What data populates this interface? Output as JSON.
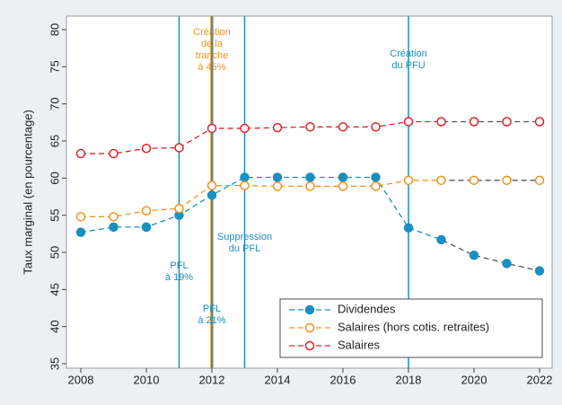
{
  "chart_data": {
    "type": "line",
    "ylabel": "Taux marginal (en pourcentage)",
    "x": [
      2008,
      2009,
      2010,
      2011,
      2012,
      2013,
      2014,
      2015,
      2016,
      2017,
      2018,
      2019,
      2020,
      2021,
      2022
    ],
    "xlim": [
      2008,
      2022
    ],
    "xticks": [
      2008,
      2010,
      2012,
      2014,
      2016,
      2018,
      2020,
      2022
    ],
    "ylim": [
      35,
      80
    ],
    "yticks": [
      35,
      40,
      45,
      50,
      55,
      60,
      65,
      70,
      75,
      80
    ],
    "grid": false,
    "legend": "lower right",
    "projected_from": 2019,
    "projected_color": "#555555",
    "series": [
      {
        "name": "Dividendes",
        "color": "#1a8fc0",
        "marker": "filled",
        "values": [
          52.7,
          53.4,
          53.4,
          55.0,
          57.7,
          60.1,
          60.1,
          60.1,
          60.1,
          60.1,
          53.3,
          51.7,
          49.6,
          48.5,
          47.5
        ]
      },
      {
        "name": "Salaires (hors cotis. retraites)",
        "color": "#f0921e",
        "marker": "hollow",
        "values": [
          54.8,
          54.8,
          55.6,
          55.9,
          59.0,
          59.0,
          58.9,
          58.9,
          58.9,
          58.9,
          59.7,
          59.7,
          59.7,
          59.7,
          59.7
        ]
      },
      {
        "name": "Salaires",
        "color": "#e0232a",
        "marker": "hollow",
        "values": [
          63.3,
          63.3,
          64.0,
          64.1,
          66.7,
          66.7,
          66.8,
          66.9,
          66.9,
          66.9,
          67.6,
          67.6,
          67.6,
          67.6,
          67.6
        ]
      }
    ],
    "vlines": [
      {
        "x": 2011,
        "color": "#1a8fc0",
        "width": 1.5,
        "label": [
          "PFL",
          "à 19%"
        ]
      },
      {
        "x": 2012,
        "color": "#f0921e",
        "width": 3.5,
        "label": [
          "Création",
          "de la",
          "tranche",
          "à 45%"
        ]
      },
      {
        "x": 2012,
        "color": "#1a8fc0",
        "width": 1.5,
        "label": [
          "PFL",
          "à 21%"
        ]
      },
      {
        "x": 2013,
        "color": "#1a8fc0",
        "width": 1.5,
        "label": [
          "Suppression",
          "du PFL"
        ]
      },
      {
        "x": 2018,
        "color": "#1a8fc0",
        "width": 1.5,
        "label": [
          "Création",
          "du PFU"
        ]
      }
    ]
  }
}
